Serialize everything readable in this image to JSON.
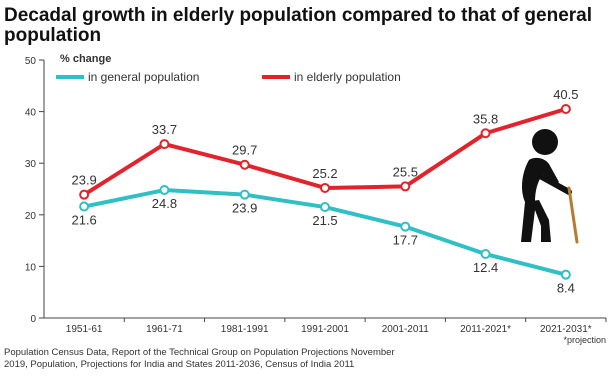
{
  "chart_data": {
    "type": "line",
    "title": "Decadal growth in elderly population compared to that of general population",
    "ylabel": "% change",
    "categories": [
      "1951-61",
      "1961-71",
      "1981-1991",
      "1991-2001",
      "2001-2011",
      "2011-2021*",
      "2021-2031*"
    ],
    "ylim": [
      0,
      50
    ],
    "yticks": [
      0,
      10,
      20,
      30,
      40,
      50
    ],
    "grid": false,
    "legend_position": "top",
    "series": [
      {
        "name": "in general population",
        "color": "#2fbfc4",
        "values": [
          21.6,
          24.8,
          23.9,
          21.5,
          17.7,
          12.4,
          8.4
        ],
        "labels": [
          "21.6",
          "24.8",
          "23.9",
          "21.5",
          "17.7",
          "12.4",
          "8.4"
        ]
      },
      {
        "name": "in elderly population",
        "color": "#e3232b",
        "values": [
          23.9,
          33.7,
          29.7,
          25.2,
          25.5,
          35.8,
          40.5
        ],
        "labels": [
          "23.9",
          "33.7",
          "29.7",
          "25.2",
          "25.5",
          "35.8",
          "40.5"
        ]
      }
    ],
    "annotation": "*projection"
  },
  "source": {
    "line1": "Population Census Data, Report of the Technical Group on Population Projections November",
    "line2": "2019, Population, Projections for India and States 2011-2036, Census of India 2011"
  },
  "icon": "elderly-person-with-cane-icon"
}
